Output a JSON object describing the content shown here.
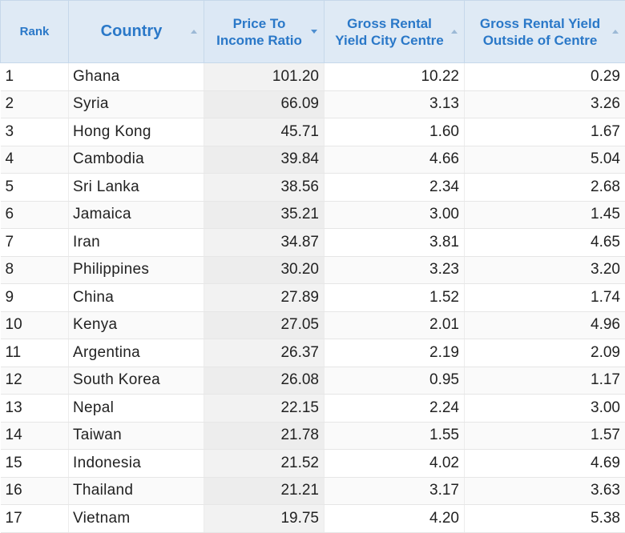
{
  "headers": {
    "rank": "Rank",
    "country": "Country",
    "price_to_income": "Price To Income Ratio",
    "yield_city": "Gross Rental Yield City Centre",
    "yield_outside": "Gross Rental Yield Outside of Centre"
  },
  "colors": {
    "header_bg": "#dfeaf5",
    "header_text": "#2a78c8",
    "sorted_col_bg": "#f2f2f2"
  },
  "rows": [
    {
      "rank": "1",
      "country": "Ghana",
      "pti": "101.20",
      "city": "10.22",
      "outside": "0.29"
    },
    {
      "rank": "2",
      "country": "Syria",
      "pti": "66.09",
      "city": "3.13",
      "outside": "3.26"
    },
    {
      "rank": "3",
      "country": "Hong Kong",
      "pti": "45.71",
      "city": "1.60",
      "outside": "1.67"
    },
    {
      "rank": "4",
      "country": "Cambodia",
      "pti": "39.84",
      "city": "4.66",
      "outside": "5.04"
    },
    {
      "rank": "5",
      "country": "Sri Lanka",
      "pti": "38.56",
      "city": "2.34",
      "outside": "2.68"
    },
    {
      "rank": "6",
      "country": "Jamaica",
      "pti": "35.21",
      "city": "3.00",
      "outside": "1.45"
    },
    {
      "rank": "7",
      "country": "Iran",
      "pti": "34.87",
      "city": "3.81",
      "outside": "4.65"
    },
    {
      "rank": "8",
      "country": "Philippines",
      "pti": "30.20",
      "city": "3.23",
      "outside": "3.20"
    },
    {
      "rank": "9",
      "country": "China",
      "pti": "27.89",
      "city": "1.52",
      "outside": "1.74"
    },
    {
      "rank": "10",
      "country": "Kenya",
      "pti": "27.05",
      "city": "2.01",
      "outside": "4.96"
    },
    {
      "rank": "11",
      "country": "Argentina",
      "pti": "26.37",
      "city": "2.19",
      "outside": "2.09"
    },
    {
      "rank": "12",
      "country": "South Korea",
      "pti": "26.08",
      "city": "0.95",
      "outside": "1.17"
    },
    {
      "rank": "13",
      "country": "Nepal",
      "pti": "22.15",
      "city": "2.24",
      "outside": "3.00"
    },
    {
      "rank": "14",
      "country": "Taiwan",
      "pti": "21.78",
      "city": "1.55",
      "outside": "1.57"
    },
    {
      "rank": "15",
      "country": "Indonesia",
      "pti": "21.52",
      "city": "4.02",
      "outside": "4.69"
    },
    {
      "rank": "16",
      "country": "Thailand",
      "pti": "21.21",
      "city": "3.17",
      "outside": "3.63"
    },
    {
      "rank": "17",
      "country": "Vietnam",
      "pti": "19.75",
      "city": "4.20",
      "outside": "5.38"
    }
  ]
}
